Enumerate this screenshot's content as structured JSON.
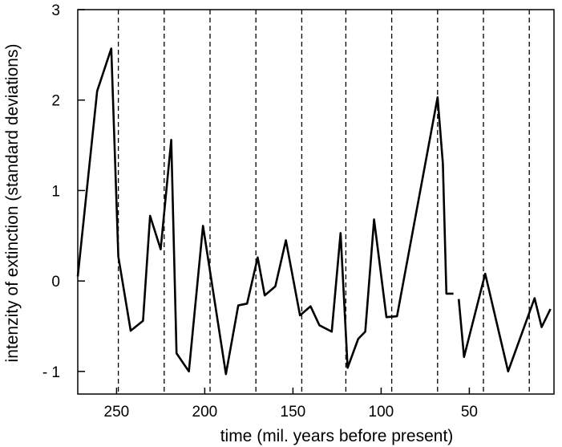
{
  "chart_data": {
    "type": "line",
    "title": "",
    "xlabel": "time (mil. years before present)",
    "ylabel": "intenzity of extinction (standard deviations)",
    "xlim": [
      272,
      2
    ],
    "ylim": [
      -1.25,
      3.0
    ],
    "x_ticks": [
      250,
      200,
      150,
      100,
      50
    ],
    "x_tick_labels": [
      "250",
      "200",
      "150",
      "100",
      "50"
    ],
    "y_ticks": [
      3,
      2,
      1,
      0,
      -1
    ],
    "y_tick_labels": [
      "3",
      "2",
      "1",
      "0",
      "- 1"
    ],
    "grid": false,
    "reference_lines": [
      {
        "axis": "x",
        "style": "dashed",
        "values": [
          249,
          223,
          197,
          171,
          145,
          120,
          94,
          68,
          42,
          16
        ]
      }
    ],
    "series": [
      {
        "color": "#000000",
        "segments": [
          [
            [
              272,
              0.05
            ],
            [
              261,
              2.1
            ],
            [
              253,
              2.57
            ],
            [
              249,
              0.27
            ],
            [
              242,
              -0.55
            ],
            [
              235,
              -0.44
            ],
            [
              231,
              0.72
            ],
            [
              225,
              0.35
            ],
            [
              219,
              1.56
            ],
            [
              216,
              -0.8
            ],
            [
              209,
              -1.0
            ],
            [
              201,
              0.61
            ],
            [
              188,
              -1.03
            ],
            [
              181,
              -0.27
            ],
            [
              176,
              -0.25
            ],
            [
              170,
              0.26
            ],
            [
              166,
              -0.16
            ],
            [
              160,
              -0.06
            ],
            [
              154,
              0.45
            ],
            [
              146,
              -0.38
            ],
            [
              140,
              -0.28
            ],
            [
              135,
              -0.49
            ],
            [
              128,
              -0.56
            ],
            [
              123,
              0.53
            ],
            [
              119,
              -0.96
            ],
            [
              113,
              -0.64
            ],
            [
              109,
              -0.56
            ],
            [
              104,
              0.68
            ],
            [
              97,
              -0.4
            ],
            [
              91,
              -0.39
            ],
            [
              68,
              2.03
            ],
            [
              65,
              1.3
            ],
            [
              63,
              -0.14
            ],
            [
              59,
              -0.14
            ]
          ],
          [
            [
              56,
              -0.2
            ],
            [
              53,
              -0.84
            ],
            [
              41,
              0.08
            ],
            [
              28,
              -1.0
            ],
            [
              13,
              -0.19
            ],
            [
              9,
              -0.51
            ],
            [
              4,
              -0.31
            ]
          ]
        ]
      }
    ]
  }
}
